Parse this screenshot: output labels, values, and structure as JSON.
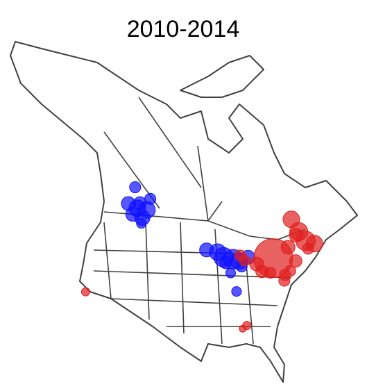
{
  "chart_data": {
    "type": "bubble_map",
    "title": "2010-2014",
    "series": [
      {
        "color": "#1010ff",
        "lon": [
          -116,
          -113.5,
          -114,
          -117,
          -111,
          -115,
          -112,
          -110.5,
          -112,
          -93,
          -90,
          -88.5,
          -86,
          -84.5,
          -82,
          -84,
          -87,
          -88,
          -86
        ],
        "lat": [
          58.5,
          56,
          55,
          55.5,
          55,
          53.8,
          53.5,
          57,
          52.5,
          48.5,
          48,
          47,
          46.5,
          46,
          46.5,
          45,
          44,
          46,
          40.5
        ],
        "size": [
          8,
          9,
          12,
          10,
          12,
          10,
          11,
          8,
          7,
          10,
          12,
          14,
          14,
          12,
          10,
          8,
          7,
          9,
          7
        ]
      },
      {
        "color": "#e02020",
        "lon": [
          -75.5,
          -80,
          -79,
          -83,
          -84,
          -71,
          -68,
          -66,
          -64,
          -67,
          -66,
          -70,
          -72,
          -74,
          -68,
          -122.3,
          -84.5,
          -85.5,
          -77,
          -73.5
        ],
        "lat": [
          45.5,
          45,
          43.5,
          46,
          47,
          46.8,
          48.5,
          47,
          46,
          49,
          45.5,
          44,
          42.5,
          41,
          51.5,
          38,
          34,
          33.5,
          43,
          42
        ],
        "size": [
          28,
          10,
          9,
          8,
          8,
          10,
          10,
          14,
          12,
          13,
          8,
          9,
          8,
          8,
          12,
          6,
          6,
          5,
          8,
          8
        ]
      }
    ]
  }
}
